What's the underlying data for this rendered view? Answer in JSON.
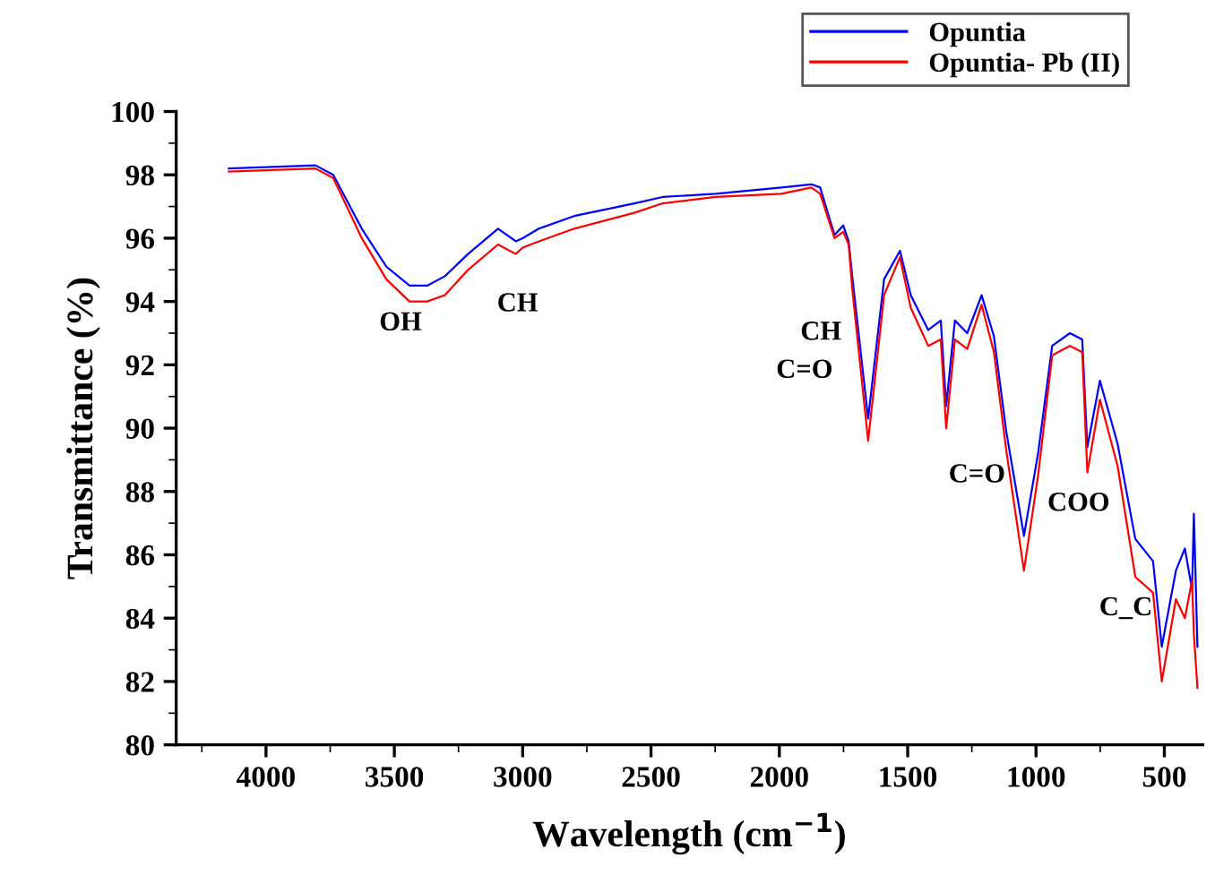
{
  "chart_data": {
    "type": "line",
    "xlabel": "Wavelength (cm$^{−1}$)",
    "ylabel": "Transmittance (%)",
    "xlim": [
      4350,
      350
    ],
    "ylim": [
      80,
      100
    ],
    "xticks": [
      4000,
      3500,
      3000,
      2500,
      2000,
      1500,
      1000,
      500
    ],
    "yticks": [
      80,
      82,
      84,
      86,
      88,
      90,
      92,
      94,
      96,
      98,
      100
    ],
    "legend": "top right",
    "grid": false,
    "marker": "none",
    "line_style": "solid",
    "series": [
      {
        "name": "Opuntia",
        "color": "#0000ff",
        "x": [
          4145,
          3807,
          3738,
          3627,
          3531,
          3441,
          3372,
          3303,
          3213,
          3096,
          3027,
          3000,
          2937,
          2799,
          2565,
          2455,
          2248,
          1992,
          1875,
          1841,
          1785,
          1751,
          1730,
          1716,
          1654,
          1592,
          1530,
          1488,
          1420,
          1371,
          1350,
          1316,
          1268,
          1212,
          1164,
          1116,
          1047,
          992,
          937,
          868,
          820,
          800,
          751,
          682,
          613,
          544,
          510,
          455,
          420,
          392,
          385,
          371
        ],
        "values": [
          98.2,
          98.3,
          98.0,
          96.3,
          95.1,
          94.5,
          94.5,
          94.8,
          95.5,
          96.3,
          95.9,
          96.0,
          96.3,
          96.7,
          97.1,
          97.3,
          97.4,
          97.6,
          97.7,
          97.6,
          96.1,
          96.4,
          95.9,
          94.8,
          90.3,
          94.7,
          95.6,
          94.2,
          93.1,
          93.4,
          90.7,
          93.4,
          93.0,
          94.2,
          92.9,
          89.9,
          86.6,
          89.2,
          92.6,
          93.0,
          92.8,
          89.4,
          91.5,
          89.5,
          86.5,
          85.8,
          83.1,
          85.5,
          86.2,
          84.9,
          87.3,
          83.1
        ]
      },
      {
        "name": "Opuntia- Pb (II)",
        "color": "#ff0000",
        "x": [
          4145,
          3807,
          3738,
          3627,
          3531,
          3441,
          3372,
          3303,
          3213,
          3096,
          3027,
          3000,
          2937,
          2799,
          2565,
          2455,
          2248,
          1992,
          1875,
          1841,
          1785,
          1751,
          1730,
          1716,
          1654,
          1592,
          1530,
          1488,
          1420,
          1371,
          1350,
          1316,
          1268,
          1212,
          1164,
          1116,
          1047,
          992,
          937,
          868,
          820,
          800,
          751,
          682,
          613,
          544,
          510,
          455,
          420,
          392,
          385,
          371
        ],
        "values": [
          98.1,
          98.2,
          97.9,
          96.0,
          94.7,
          94.0,
          94.0,
          94.2,
          95.0,
          95.8,
          95.5,
          95.7,
          95.9,
          96.3,
          96.8,
          97.1,
          97.3,
          97.4,
          97.6,
          97.4,
          96.0,
          96.2,
          95.8,
          94.4,
          89.6,
          94.2,
          95.4,
          93.8,
          92.6,
          92.8,
          90.0,
          92.8,
          92.5,
          93.9,
          92.4,
          89.3,
          85.5,
          88.5,
          92.3,
          92.6,
          92.4,
          88.6,
          90.9,
          88.8,
          85.3,
          84.8,
          82.0,
          84.6,
          84.0,
          85.2,
          83.5,
          81.8
        ]
      }
    ],
    "annotations": [
      "OH",
      "CH",
      "C=O",
      "CH",
      "C=O",
      "COO",
      "C_C"
    ]
  }
}
